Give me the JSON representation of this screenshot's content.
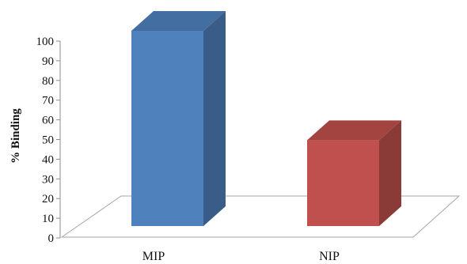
{
  "chart_data": {
    "type": "bar",
    "categories": [
      "MIP",
      "NIP"
    ],
    "series": [
      {
        "values": [
          100,
          44
        ]
      }
    ],
    "ylabel": "% Binding",
    "xlabel": "",
    "ylim": [
      0,
      100
    ],
    "yticks": [
      "0",
      "10",
      "20",
      "30",
      "40",
      "50",
      "60",
      "70",
      "80",
      "90",
      "100"
    ],
    "grid": false,
    "legend": "none",
    "bar_colors": [
      "#4f81bd",
      "#c0504d"
    ],
    "style": "3d-column"
  }
}
